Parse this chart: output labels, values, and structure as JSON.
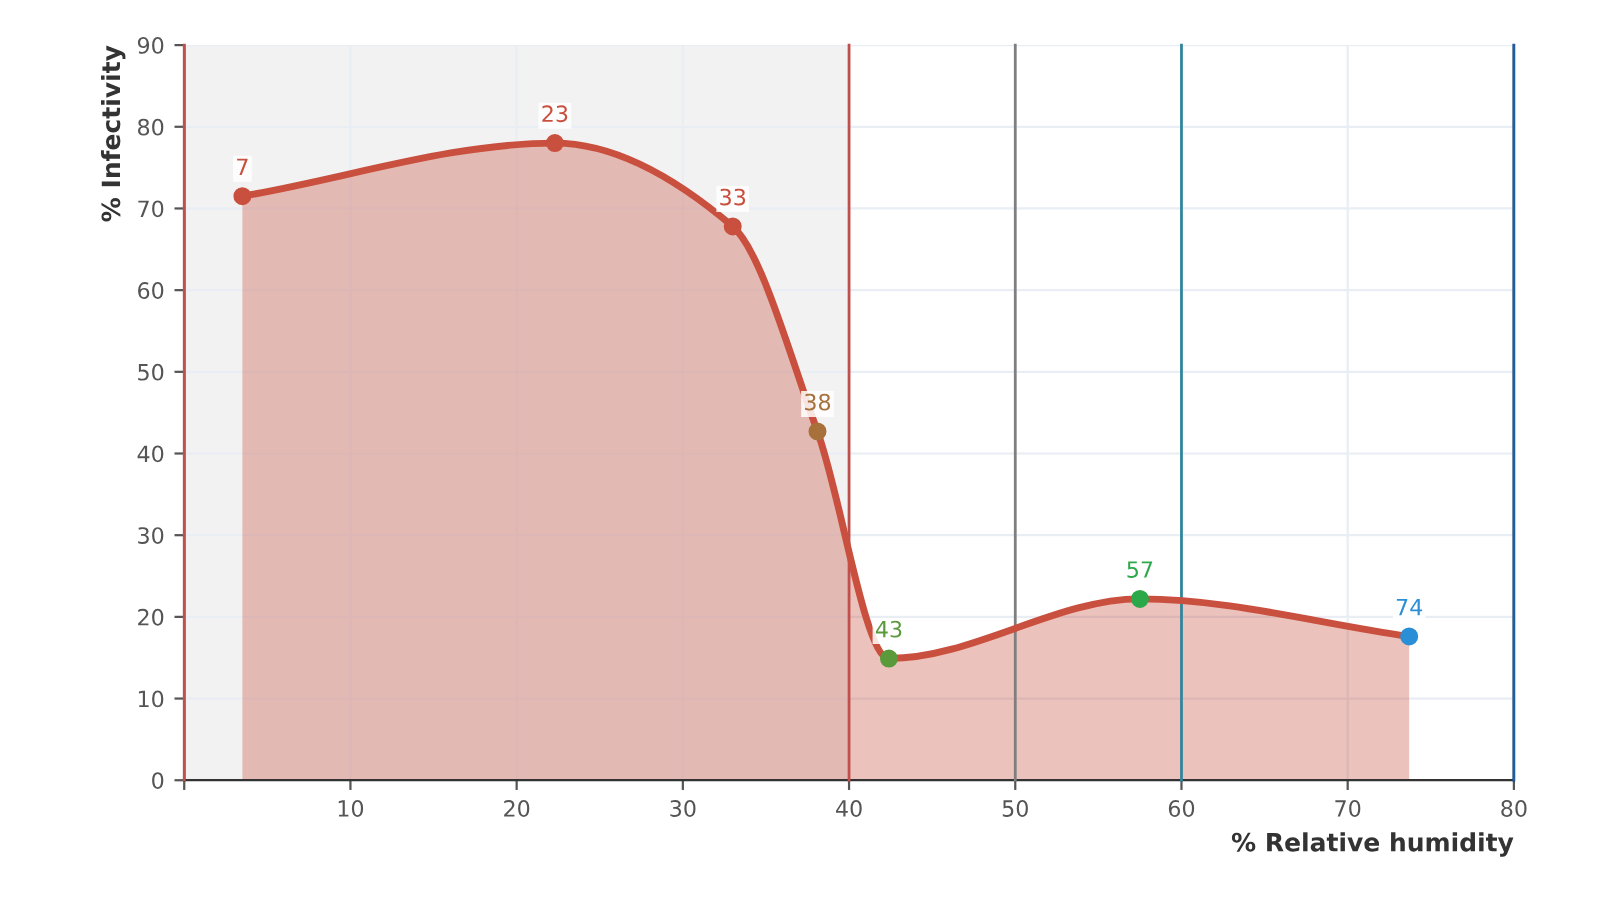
{
  "chart_data": {
    "type": "area",
    "xlabel": "% Relative humidity",
    "ylabel": "% Infectivity",
    "series": [
      {
        "x": [
          3.5,
          22.3,
          33,
          38.1,
          42.4,
          57.5,
          73.7
        ],
        "values": [
          71.5,
          78,
          67.8,
          42.7,
          14.9,
          22.2,
          17.6
        ],
        "colors": [
          "#c9503e",
          "#c9503e",
          "#c9503e",
          "#a8703a",
          "#5a9a3a",
          "#2aa84a",
          "#2a8fd6"
        ],
        "color": "#c9503e"
      }
    ],
    "annotations": [
      {
        "text": "7",
        "x": 3.5,
        "y": 71.5
      },
      {
        "text": "23",
        "x": 22.3,
        "y": 78
      },
      {
        "text": "33",
        "x": 33,
        "y": 67.8
      },
      {
        "text": "38",
        "x": 38.1,
        "y": 42.7
      },
      {
        "text": "43",
        "x": 42.4,
        "y": 14.9
      },
      {
        "text": "57",
        "x": 57.5,
        "y": 22.2
      },
      {
        "text": "74",
        "x": 73.7,
        "y": 17.6
      }
    ],
    "xlim": [
      0,
      80
    ],
    "ylim": [
      0,
      90
    ],
    "xticks": [
      {
        "value": 0,
        "label": null
      },
      10,
      20,
      30,
      40,
      50,
      60,
      70,
      80
    ],
    "yticks": [
      0,
      10,
      20,
      30,
      40,
      50,
      60,
      70,
      80,
      90
    ],
    "bands": [
      {
        "axis": "x",
        "from": 0,
        "to": 40,
        "color": "#f2f2f2"
      }
    ],
    "ref_lines": [
      {
        "axis": "x",
        "value": 0,
        "color": "#c0504d"
      },
      {
        "axis": "x",
        "value": 40,
        "color": "#c0504d"
      },
      {
        "axis": "x",
        "value": 50,
        "color": "#7f7f7f"
      },
      {
        "axis": "x",
        "value": 60,
        "color": "#31859c"
      },
      {
        "axis": "x",
        "value": 80,
        "color": "#1f5f9f"
      }
    ],
    "grid": true,
    "marker": "circle",
    "line_style": "solid",
    "legend": false
  }
}
